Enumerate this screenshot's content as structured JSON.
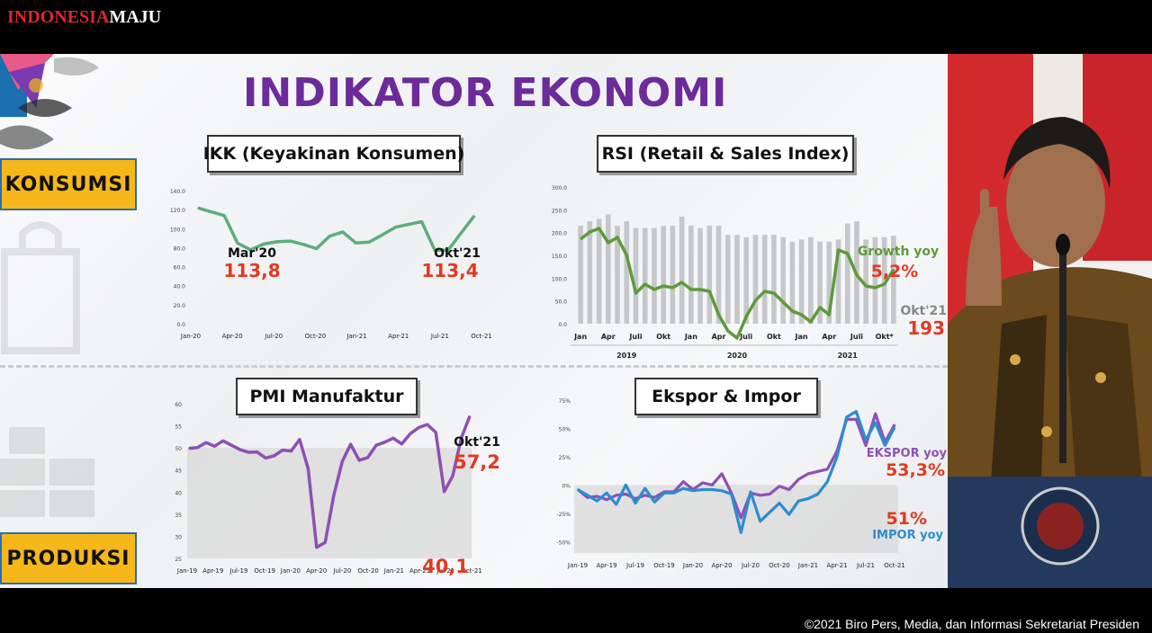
{
  "broadcast": {
    "logo_left": "INDONESIA",
    "logo_right": "MAJU",
    "copyright": "©2021 Biro Pers, Media, dan Informasi Sekretariat Presiden"
  },
  "slide": {
    "title": "INDIKATOR EKONOMI",
    "sections": [
      "KONSUMSI",
      "PRODUKSI"
    ]
  },
  "chart_data": [
    {
      "id": "ikk",
      "type": "line",
      "title": "IKK (Keyakinan Konsumen)",
      "color": "#5cae7e",
      "ylim": [
        0,
        140
      ],
      "yticks": [
        "0.0",
        "20.0",
        "40.0",
        "60.0",
        "80.0",
        "100.0",
        "120.0",
        "140.0"
      ],
      "xticks": [
        "Jan-20",
        "Apr-20",
        "Jul-20",
        "Oct-20",
        "Jan-21",
        "Apr-21",
        "Jul-21",
        "Oct-21"
      ],
      "values": [
        121.7,
        117.7,
        113.8,
        84.8,
        77.8,
        83.8,
        86.2,
        86.9,
        83.4,
        79.0,
        92.0,
        96.5,
        84.9,
        85.8,
        93.4,
        101.5,
        104.4,
        107.4,
        77.3,
        77.3,
        95.5,
        113.4
      ],
      "annotations": [
        {
          "label": "Mar'20",
          "value": "113,8"
        },
        {
          "label": "Okt'21",
          "value": "113,4"
        }
      ]
    },
    {
      "id": "rsi",
      "type": "bar",
      "title": "RSI (Retail & Sales Index)",
      "line_color": "#5d9b3a",
      "bar_color": "#c5c7ca",
      "ylim": [
        0,
        300
      ],
      "yticks": [
        "0.0",
        "50.0",
        "100.0",
        "150.0",
        "200.0",
        "250.0",
        "300.0"
      ],
      "xticks": [
        "Jan",
        "Apr",
        "Juli",
        "Okt",
        "Jan",
        "Apr",
        "Juli",
        "Okt",
        "Jan",
        "Apr",
        "Juli",
        "Okt*"
      ],
      "year_labels": [
        "2019",
        "2020",
        "2021"
      ],
      "bars": [
        215,
        225,
        230,
        240,
        215,
        225,
        210,
        210,
        210,
        215,
        215,
        235,
        215,
        210,
        215,
        215,
        195,
        195,
        190,
        195,
        195,
        195,
        190,
        180,
        185,
        190,
        180,
        180,
        185,
        220,
        225,
        185,
        190,
        190,
        193
      ],
      "growth": [
        22,
        26,
        28,
        20,
        23,
        13,
        -8,
        -3,
        -6,
        -4,
        -5,
        -2,
        -6,
        -6,
        -7,
        -20,
        -29,
        -33,
        -21,
        -12,
        -7,
        -8,
        -13,
        -18,
        -20,
        -24,
        -16,
        -20,
        16,
        14,
        2,
        -4,
        -5,
        -3,
        5.2
      ],
      "annotations": [
        {
          "label": "Growth yoy",
          "value": "5,2%"
        },
        {
          "label": "Okt'21",
          "value": "193"
        }
      ]
    },
    {
      "id": "pmi",
      "type": "line",
      "title": "PMI Manufaktur",
      "color": "#8e50b5",
      "ylim": [
        25,
        60
      ],
      "yticks": [
        "25",
        "30",
        "35",
        "40",
        "45",
        "50",
        "55",
        "60"
      ],
      "xticks": [
        "Jan-19",
        "Apr-19",
        "Jul-19",
        "Oct-19",
        "Jan-20",
        "Apr-20",
        "Jul-20",
        "Oct-20",
        "Jan-21",
        "Apr-21",
        "Jul-21",
        "Oct-21"
      ],
      "values": [
        49.9,
        50.1,
        51.2,
        50.4,
        51.6,
        50.6,
        49.6,
        49.0,
        49.1,
        47.7,
        48.2,
        49.5,
        49.3,
        51.9,
        45.3,
        27.5,
        28.6,
        39.1,
        46.9,
        50.8,
        47.2,
        47.8,
        50.6,
        51.3,
        52.2,
        50.9,
        53.2,
        54.6,
        55.3,
        53.5,
        40.1,
        43.7,
        52.2,
        57.2
      ],
      "annotations": [
        {
          "label": "Okt'21",
          "value": "57,2"
        },
        {
          "label": "",
          "value": "40,1"
        }
      ]
    },
    {
      "id": "trade",
      "type": "line",
      "title": "Ekspor & Impor",
      "ylim": [
        -60,
        75
      ],
      "yticks": [
        "-50%",
        "-25%",
        "0%",
        "25%",
        "50%",
        "75%"
      ],
      "xticks": [
        "Jan-19",
        "Apr-19",
        "Jul-19",
        "Oct-19",
        "Jan-20",
        "Apr-20",
        "Jul-20",
        "Oct-20",
        "Jan-21",
        "Apr-21",
        "Jul-21",
        "Oct-21"
      ],
      "series": [
        {
          "name": "EKSPOR yoy",
          "color": "#8e50b5",
          "values": [
            -4,
            -11,
            -10,
            -13,
            -9,
            -8,
            -12,
            -9,
            -11,
            -6,
            -6,
            3,
            -4,
            2,
            0,
            10,
            -7,
            -29,
            -7,
            -9,
            -8,
            -1,
            -4,
            5,
            10,
            12,
            14,
            30,
            58,
            58,
            35,
            63,
            38,
            53.3
          ]
        },
        {
          "name": "IMPOR yoy",
          "color": "#2c8dcf",
          "values": [
            -4,
            -9,
            -14,
            -7,
            -17,
            0,
            -16,
            -3,
            -15,
            -7,
            -7,
            -3,
            -5,
            -4,
            -4,
            -5,
            -8,
            -42,
            -6,
            -32,
            -24,
            -16,
            -26,
            -14,
            -12,
            -8,
            3,
            25,
            60,
            65,
            40,
            55,
            35,
            51
          ]
        }
      ],
      "annotations": [
        {
          "label": "EKSPOR yoy",
          "value": "53,3%"
        },
        {
          "label": "IMPOR yoy",
          "value": "51%"
        }
      ]
    }
  ]
}
